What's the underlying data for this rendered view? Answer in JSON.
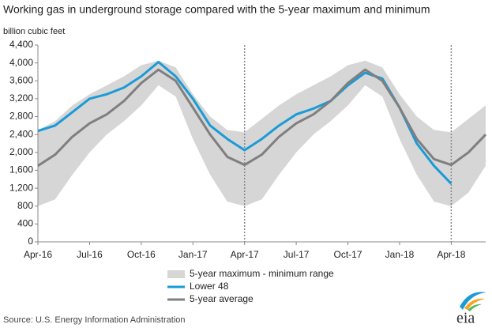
{
  "chart_data": {
    "type": "line",
    "title": "Working gas in underground  storage compared with the 5-year maximum and minimum",
    "y_label": "billion cubic feet",
    "source": "Source:  U.S. Energy Information Administration",
    "categories": [
      "Apr-16",
      null,
      null,
      "Jul-16",
      null,
      null,
      "Oct-16",
      null,
      null,
      "Jan-17",
      null,
      null,
      "Apr-17",
      null,
      null,
      "Jul-17",
      null,
      null,
      "Oct-17",
      null,
      null,
      "Jan-18",
      null,
      null,
      "Apr-18",
      null,
      null
    ],
    "ylim": [
      0,
      4400
    ],
    "yticks": [
      0,
      400,
      800,
      {
        "value": 1200,
        "label": "1,200"
      },
      {
        "value": 1600,
        "label": "1,600"
      },
      {
        "value": 2000,
        "label": "2,000"
      },
      {
        "value": 2400,
        "label": "2,400"
      },
      {
        "value": 2800,
        "label": "2,800"
      },
      {
        "value": 3200,
        "label": "3,200"
      },
      {
        "value": 3600,
        "label": "3,600"
      },
      {
        "value": 4000,
        "label": "4,000"
      },
      {
        "value": 4400,
        "label": "4,400"
      }
    ],
    "grid": false,
    "series": [
      {
        "name": "5-year maximum - minimum range",
        "type": "range",
        "color": "#d6d6d6",
        "max": [
          2500,
          2700,
          3050,
          3300,
          3500,
          3700,
          3950,
          4050,
          3900,
          3300,
          2800,
          2500,
          2450,
          2750,
          3050,
          3300,
          3500,
          3700,
          3950,
          4050,
          3900,
          3300,
          2800,
          2500,
          2450,
          2750,
          3050
        ],
        "min": [
          800,
          950,
          1500,
          2000,
          2400,
          2700,
          3050,
          3500,
          3250,
          2300,
          1500,
          900,
          800,
          950,
          1500,
          2000,
          2400,
          2700,
          3050,
          3500,
          3250,
          2300,
          1500,
          900,
          800,
          1100,
          1700
        ]
      },
      {
        "name": "Lower 48",
        "color": "#1a9bd7",
        "values": [
          2480,
          2600,
          2900,
          3200,
          3300,
          3450,
          3700,
          4020,
          3700,
          3200,
          2600,
          2300,
          2050,
          2300,
          2600,
          2850,
          2980,
          3150,
          3500,
          3780,
          3650,
          3000,
          2200,
          1700,
          1300,
          null,
          null
        ]
      },
      {
        "name": "5-year average",
        "color": "#7f7f7f",
        "values": [
          1700,
          1950,
          2350,
          2650,
          2850,
          3150,
          3550,
          3850,
          3600,
          3000,
          2400,
          1900,
          1720,
          1950,
          2350,
          2650,
          2850,
          3150,
          3550,
          3850,
          3600,
          3000,
          2300,
          1850,
          1720,
          2000,
          2400
        ]
      }
    ]
  }
}
